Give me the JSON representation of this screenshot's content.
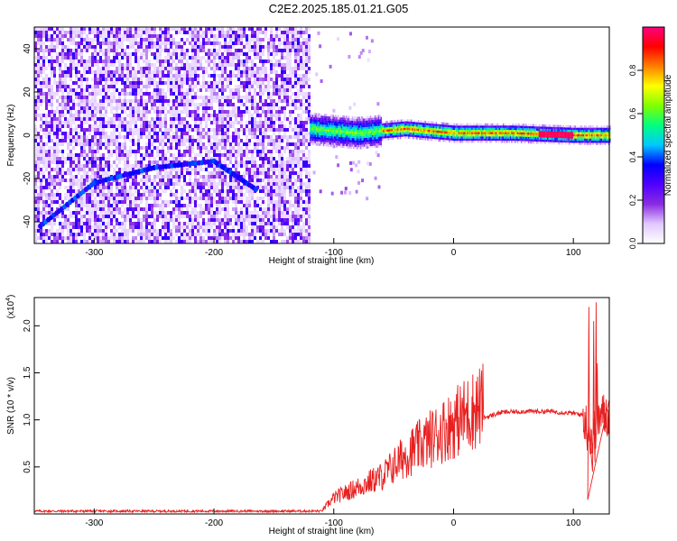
{
  "figure": {
    "title": "C2E2.2025.185.01.21.G05"
  },
  "chart_data": [
    {
      "type": "heatmap",
      "title": "",
      "xlabel": "Height of straight line (km)",
      "ylabel": "Frequency (Hz)",
      "xlim": [
        -350,
        130
      ],
      "ylim": [
        -50,
        50
      ],
      "x_ticks": [
        -300,
        -200,
        -100,
        0,
        100
      ],
      "x_tick_labels": [
        "-300",
        "-200",
        "-100",
        "0",
        "100"
      ],
      "y_ticks": [
        -40,
        -20,
        0,
        20,
        40
      ],
      "y_tick_labels": [
        "-40",
        "-20",
        "0",
        "20",
        "40"
      ],
      "colorbar": {
        "label": "Normalized spectral amplitude",
        "range": [
          0,
          1
        ],
        "ticks": [
          0.0,
          0.2,
          0.4,
          0.6,
          0.8
        ],
        "tick_labels": [
          "0.0",
          "0.2",
          "0.4",
          "0.6",
          "0.8"
        ],
        "colors": [
          "#ffffff",
          "#e0c8ff",
          "#8a2be2",
          "#5000ff",
          "#0000ff",
          "#00c8ff",
          "#00ff80",
          "#80ff00",
          "#ffff00",
          "#ff8000",
          "#ff0000",
          "#ff0080"
        ]
      },
      "features": {
        "noise_region_x": [
          -350,
          -120
        ],
        "signal_center_freq": [
          [
            -120,
            3
          ],
          [
            -80,
            1
          ],
          [
            -40,
            3
          ],
          [
            0,
            1
          ],
          [
            50,
            1
          ],
          [
            100,
            0
          ],
          [
            130,
            0
          ]
        ],
        "arc_shaped_features": [
          [
            -345,
            -42
          ],
          [
            -300,
            -22
          ],
          [
            -250,
            -15
          ],
          [
            -200,
            -12
          ],
          [
            -165,
            -25
          ]
        ]
      },
      "grid": false
    },
    {
      "type": "line",
      "title": "",
      "xlabel": "Height of straight line (km)",
      "ylabel": "SNR (10 * v/v)",
      "y_multiplier": "(x10",
      "y_multiplier_exp": "4",
      "y_multiplier_close": ")",
      "xlim": [
        -350,
        130
      ],
      "ylim": [
        0,
        23000
      ],
      "x_ticks": [
        -300,
        -200,
        -100,
        0,
        100
      ],
      "x_tick_labels": [
        "-300",
        "-200",
        "-100",
        "0",
        "100"
      ],
      "y_ticks": [
        5000,
        10000,
        15000,
        20000
      ],
      "y_tick_labels": [
        "0.5",
        "1.0",
        "1.5",
        "2.0"
      ],
      "line_color": "#e82020",
      "series_profile": [
        [
          -350,
          300
        ],
        [
          -110,
          300
        ],
        [
          -100,
          1500
        ],
        [
          -80,
          2500
        ],
        [
          -60,
          3500
        ],
        [
          -40,
          5500
        ],
        [
          -20,
          7000
        ],
        [
          0,
          8500
        ],
        [
          20,
          10000
        ],
        [
          40,
          10800
        ],
        [
          60,
          10900
        ],
        [
          80,
          10900
        ],
        [
          100,
          10700
        ],
        [
          108,
          10500
        ],
        [
          112,
          9000
        ],
        [
          116,
          8000
        ],
        [
          120,
          10000
        ],
        [
          125,
          10500
        ],
        [
          130,
          10500
        ]
      ],
      "spikes": [
        [
          112,
          1500
        ],
        [
          113,
          22000
        ],
        [
          116,
          4500
        ],
        [
          117,
          20500
        ],
        [
          118,
          5500
        ],
        [
          119,
          22500
        ],
        [
          120,
          16000
        ]
      ],
      "grid": false
    }
  ]
}
